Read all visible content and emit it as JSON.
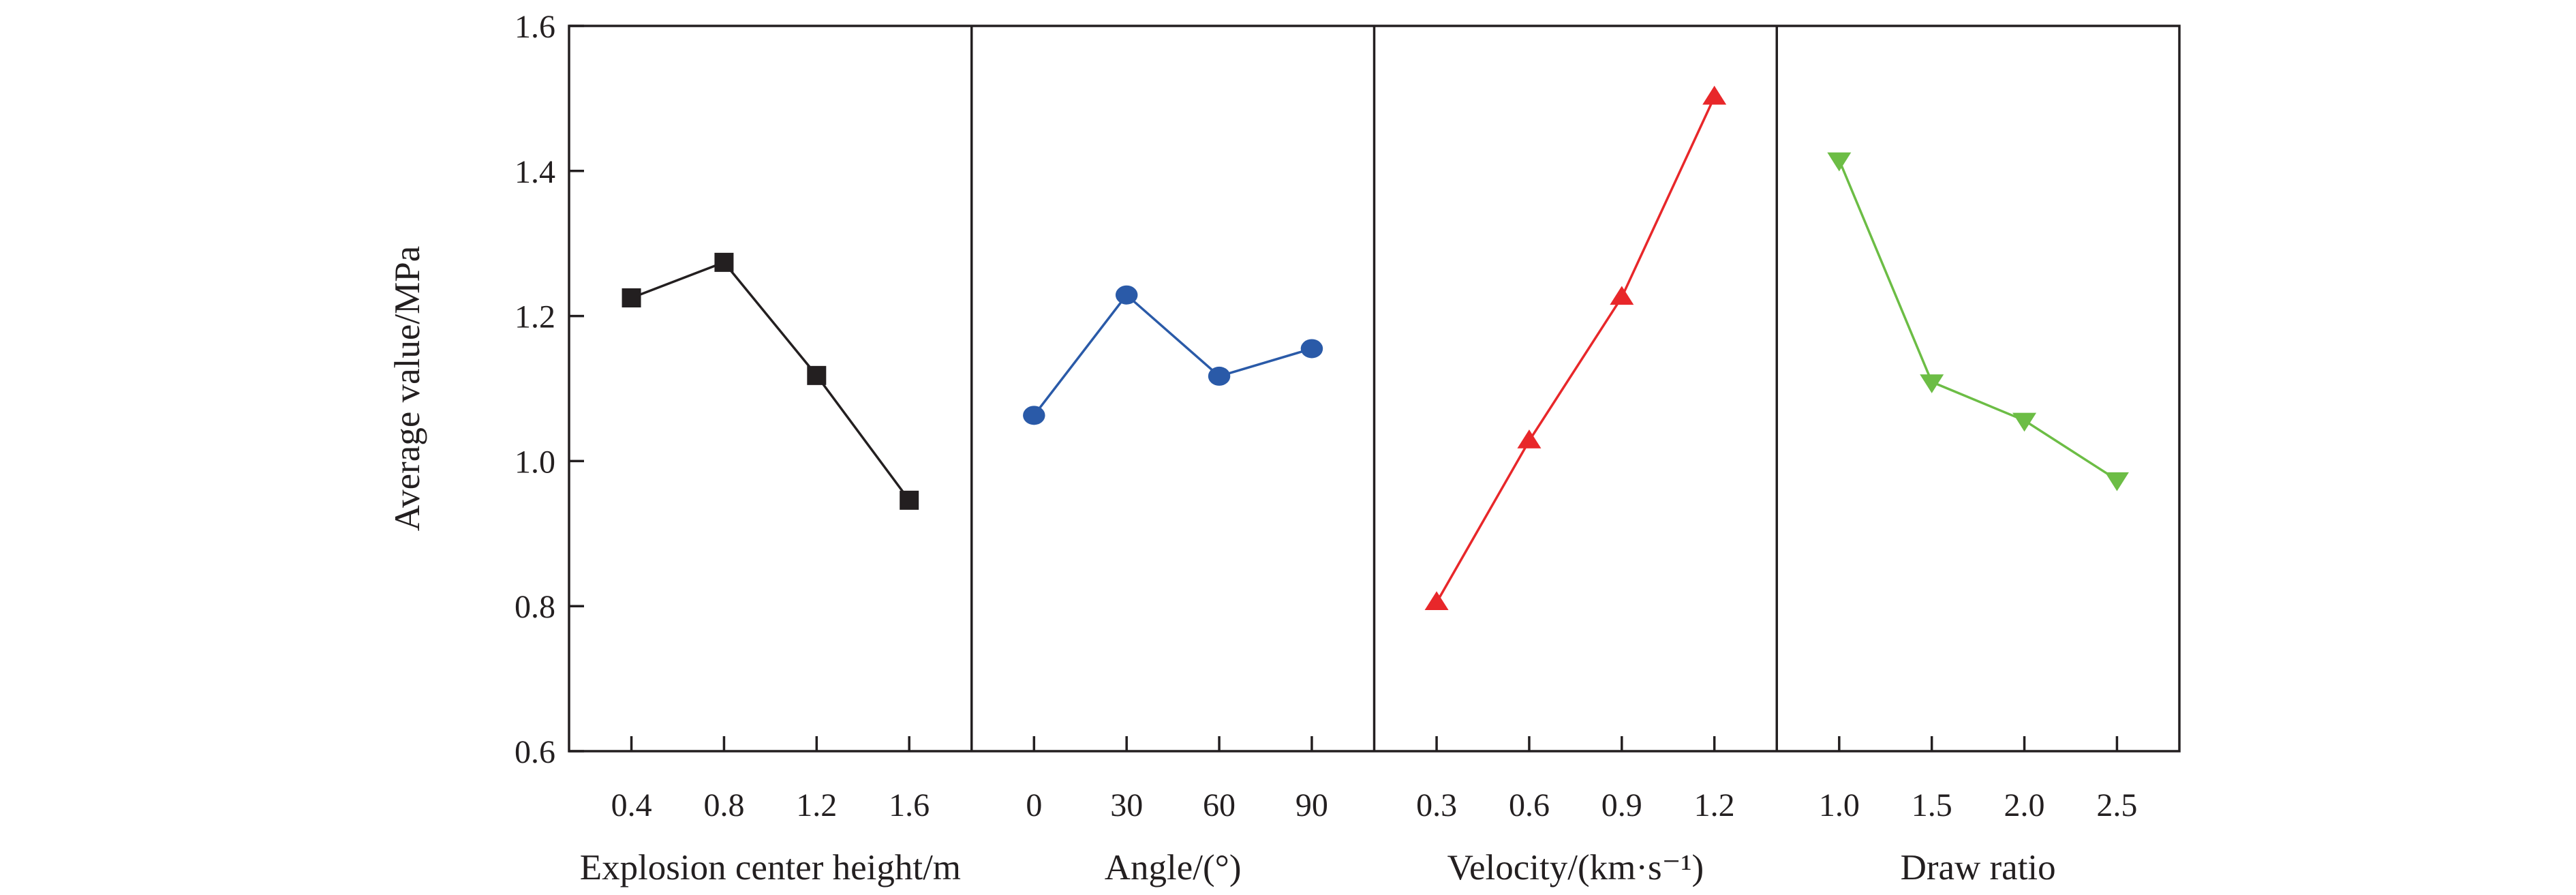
{
  "chart_data": {
    "type": "line",
    "ylabel": "Average value/MPa",
    "ylim": [
      0.6,
      1.6
    ],
    "yticks": [
      "0.6",
      "0.8",
      "1.0",
      "1.2",
      "1.4",
      "1.6"
    ],
    "grid": false,
    "panels": [
      {
        "xlabel": "Explosion center height/m",
        "categories": [
          "0.4",
          "0.8",
          "1.2",
          "1.6"
        ],
        "values": [
          1.225,
          1.274,
          1.118,
          0.946
        ],
        "marker": "square",
        "color": "#231f20"
      },
      {
        "xlabel": "Angle/(°)",
        "categories": [
          "0",
          "30",
          "60",
          "90"
        ],
        "values": [
          1.063,
          1.229,
          1.117,
          1.155
        ],
        "marker": "circle",
        "color": "#2a5aa8"
      },
      {
        "xlabel": "Velocity/(km·s⁻¹)",
        "categories": [
          "0.3",
          "0.6",
          "0.9",
          "1.2"
        ],
        "values": [
          0.805,
          1.028,
          1.226,
          1.502
        ],
        "marker": "triangle-up",
        "color": "#e8272a"
      },
      {
        "xlabel": "Draw ratio",
        "categories": [
          "1.0",
          "1.5",
          "2.0",
          "2.5"
        ],
        "values": [
          1.415,
          1.109,
          1.056,
          0.974
        ],
        "marker": "triangle-down",
        "color": "#6cbd45"
      }
    ]
  }
}
